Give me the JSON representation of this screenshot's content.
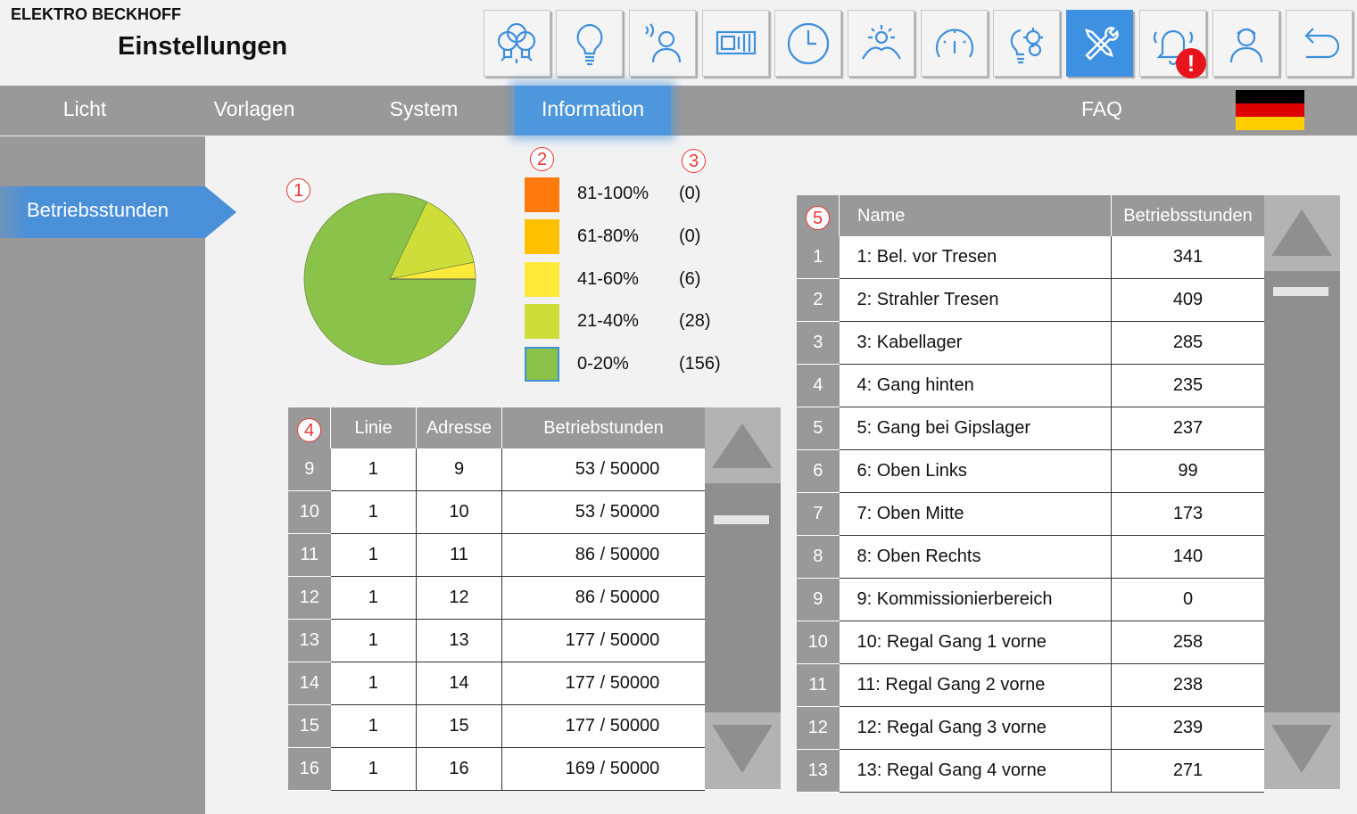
{
  "header": {
    "brand": "ELEKTRO BECKHOFF",
    "title": "Einstellungen"
  },
  "toolbar": {
    "icons": [
      "lamps-icon",
      "bulb-icon",
      "presence-sensor-icon",
      "blinds-icon",
      "clock-icon",
      "daylight-icon",
      "speedometer-icon",
      "smart-bulb-gears-icon",
      "tools-icon",
      "alarm-bell-icon",
      "user-icon",
      "back-arrow-icon"
    ],
    "active_icon": "tools-icon",
    "alert_badge": "!"
  },
  "nav": {
    "items": [
      "Licht",
      "Vorlagen",
      "System",
      "Information",
      "FAQ"
    ],
    "active": "Information",
    "language_flag": "german-flag-icon"
  },
  "sidebar": {
    "items": [
      "Betriebsstunden"
    ],
    "active": "Betriebsstunden"
  },
  "markers": {
    "m1": "1",
    "m2": "2",
    "m3": "3",
    "m4": "4",
    "m5": "5"
  },
  "legend": [
    {
      "label": "81-100%",
      "count": "(0)",
      "color": "#ff7a0c"
    },
    {
      "label": "61-80%",
      "count": "(0)",
      "color": "#ffc000"
    },
    {
      "label": "41-60%",
      "count": "(6)",
      "color": "#ffe93a"
    },
    {
      "label": "21-40%",
      "count": "(28)",
      "color": "#cfdd3a"
    },
    {
      "label": "0-20%",
      "count": "(156)",
      "color": "#8bc34a"
    }
  ],
  "chart_data": {
    "type": "pie",
    "categories": [
      "81-100%",
      "61-80%",
      "41-60%",
      "21-40%",
      "0-20%"
    ],
    "values": [
      0,
      0,
      6,
      28,
      156
    ]
  },
  "table_left": {
    "headers": [
      "Linie",
      "Adresse",
      "Betriebstunden"
    ],
    "rows": [
      {
        "idx": "9",
        "linie": "1",
        "adresse": "9",
        "stunden": "53",
        "max": "50000"
      },
      {
        "idx": "10",
        "linie": "1",
        "adresse": "10",
        "stunden": "53",
        "max": "50000"
      },
      {
        "idx": "11",
        "linie": "1",
        "adresse": "11",
        "stunden": "86",
        "max": "50000"
      },
      {
        "idx": "12",
        "linie": "1",
        "adresse": "12",
        "stunden": "86",
        "max": "50000"
      },
      {
        "idx": "13",
        "linie": "1",
        "adresse": "13",
        "stunden": "177",
        "max": "50000"
      },
      {
        "idx": "14",
        "linie": "1",
        "adresse": "14",
        "stunden": "177",
        "max": "50000"
      },
      {
        "idx": "15",
        "linie": "1",
        "adresse": "15",
        "stunden": "177",
        "max": "50000"
      },
      {
        "idx": "16",
        "linie": "1",
        "adresse": "16",
        "stunden": "169",
        "max": "50000"
      }
    ],
    "separator": "/"
  },
  "table_right": {
    "headers": [
      "Name",
      "Betriebsstunden"
    ],
    "rows": [
      {
        "idx": "1",
        "name": "1: Bel. vor Tresen",
        "stunden": "341"
      },
      {
        "idx": "2",
        "name": "2: Strahler Tresen",
        "stunden": "409"
      },
      {
        "idx": "3",
        "name": "3: Kabellager",
        "stunden": "285"
      },
      {
        "idx": "4",
        "name": "4: Gang hinten",
        "stunden": "235"
      },
      {
        "idx": "5",
        "name": "5: Gang bei Gipslager",
        "stunden": "237"
      },
      {
        "idx": "6",
        "name": "6: Oben Links",
        "stunden": "99"
      },
      {
        "idx": "7",
        "name": "7: Oben Mitte",
        "stunden": "173"
      },
      {
        "idx": "8",
        "name": "8: Oben Rechts",
        "stunden": "140"
      },
      {
        "idx": "9",
        "name": "9: Kommissionierbereich",
        "stunden": "0"
      },
      {
        "idx": "10",
        "name": "10: Regal Gang 1 vorne",
        "stunden": "258"
      },
      {
        "idx": "11",
        "name": "11: Regal Gang 2 vorne",
        "stunden": "238"
      },
      {
        "idx": "12",
        "name": "12: Regal Gang 3 vorne",
        "stunden": "239"
      },
      {
        "idx": "13",
        "name": "13: Regal Gang 4 vorne",
        "stunden": "271"
      }
    ]
  }
}
